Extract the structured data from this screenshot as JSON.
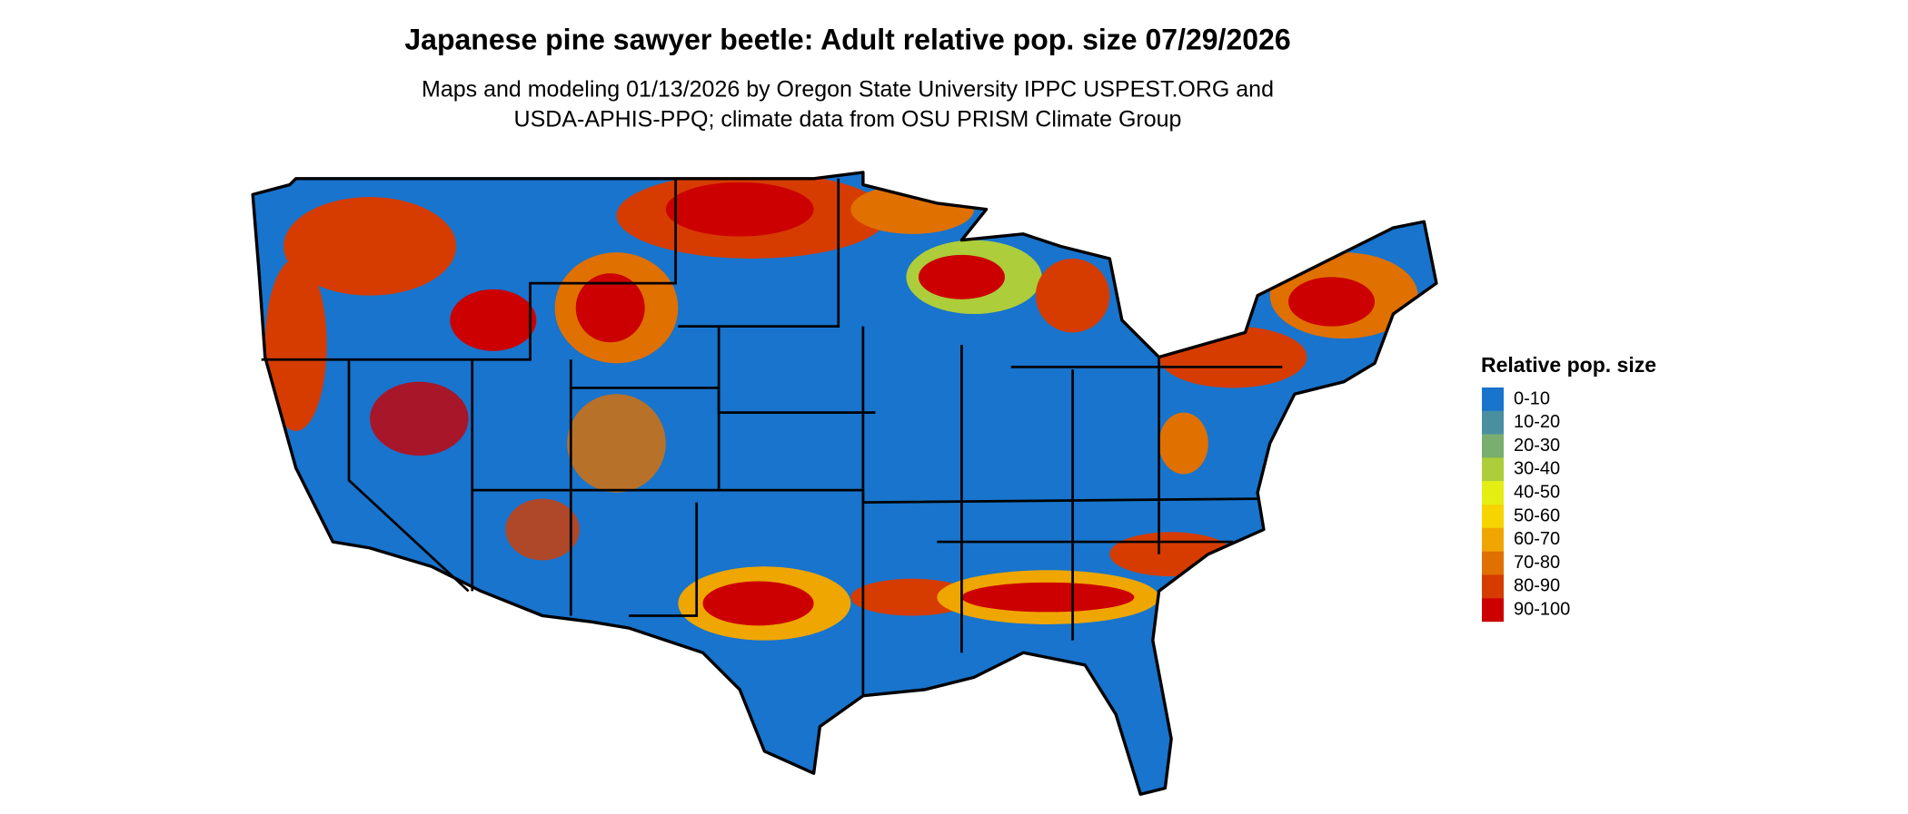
{
  "header": {
    "title": "Japanese pine sawyer beetle: Adult relative pop. size 07/29/2026",
    "subtitle": [
      "Maps and modeling 01/13/2026 by Oregon State University IPPC USPEST.ORG and",
      "USDA-APHIS-PPQ; climate data from OSU PRISM Climate Group"
    ]
  },
  "legend": {
    "title": "Relative pop. size",
    "items": [
      {
        "label": "0-10",
        "color": "#1874cd"
      },
      {
        "label": "10-20",
        "color": "#4a8fa0"
      },
      {
        "label": "20-30",
        "color": "#7aae6e"
      },
      {
        "label": "30-40",
        "color": "#adcd3a"
      },
      {
        "label": "40-50",
        "color": "#e5ee12"
      },
      {
        "label": "50-60",
        "color": "#f5d400"
      },
      {
        "label": "60-70",
        "color": "#efa600"
      },
      {
        "label": "70-80",
        "color": "#e07000"
      },
      {
        "label": "80-90",
        "color": "#d63c00"
      },
      {
        "label": "90-100",
        "color": "#cc0000"
      }
    ]
  }
}
